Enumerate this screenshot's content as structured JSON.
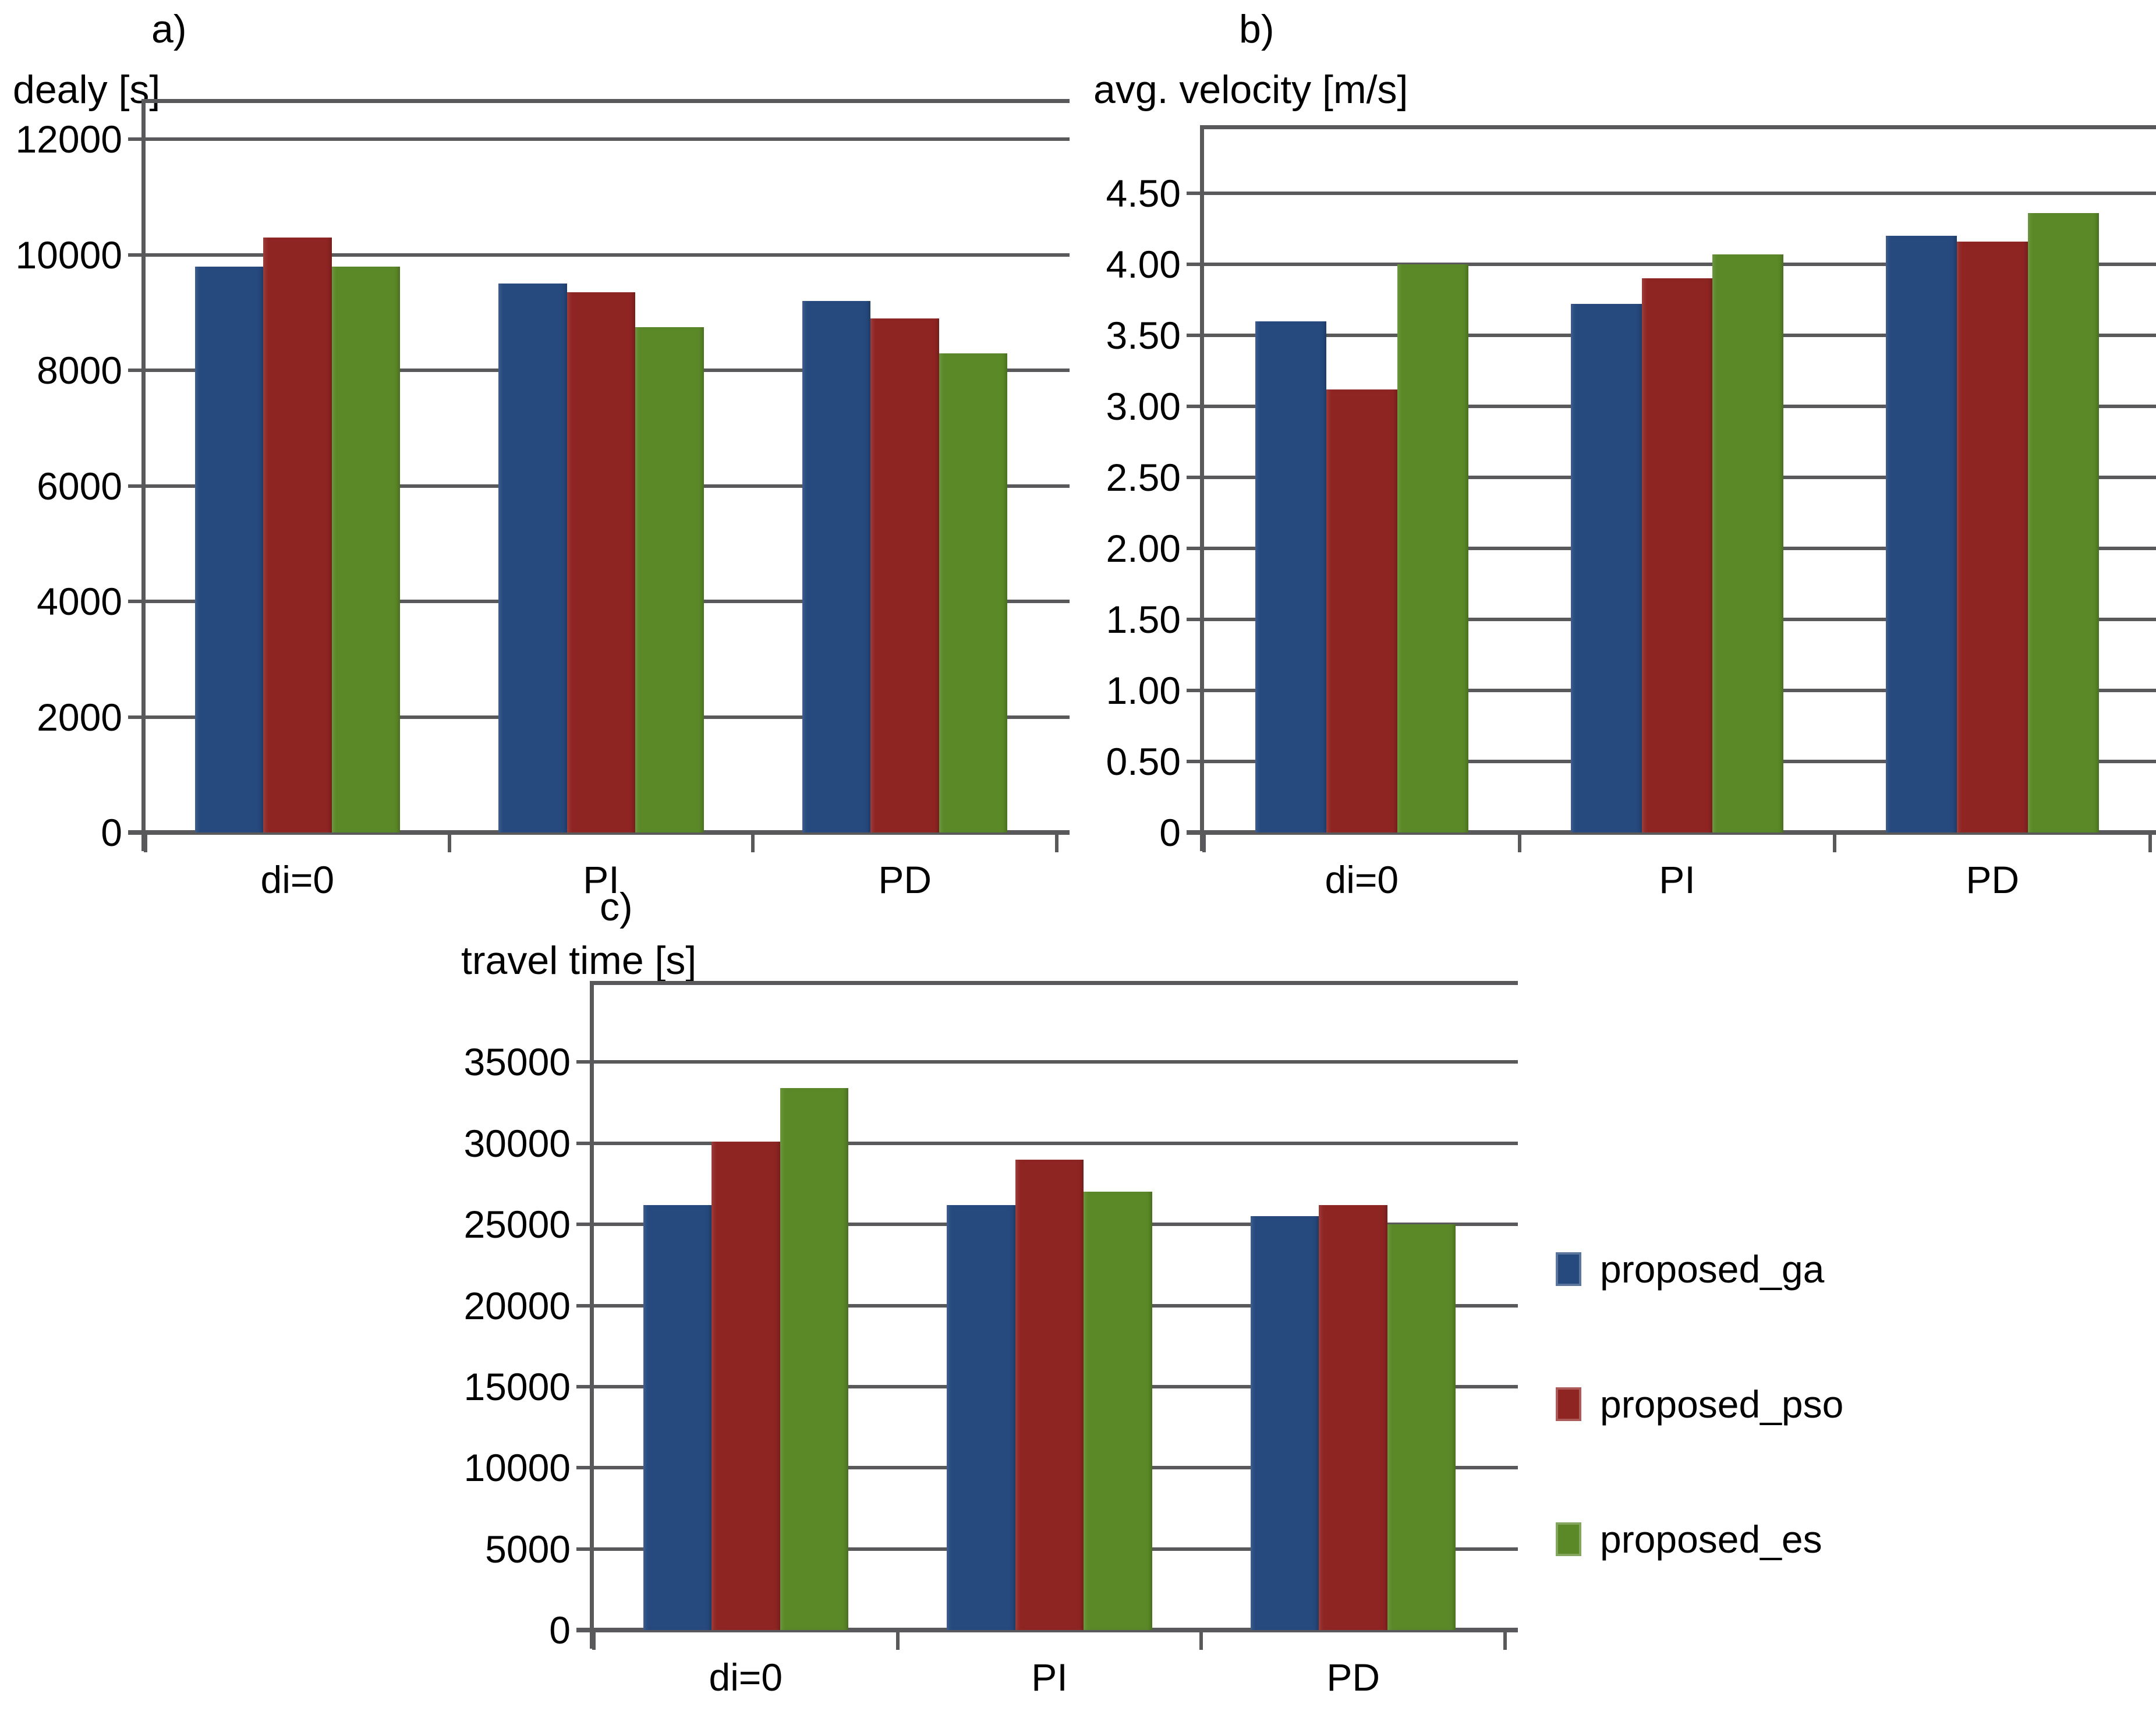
{
  "figure": {
    "background": "#ffffff",
    "gridline_color": "#59595b",
    "text_color": "#000000"
  },
  "legend": {
    "items": [
      {
        "label": "proposed_ga",
        "color": "#26497E"
      },
      {
        "label": "proposed_pso",
        "color": "#8F2523"
      },
      {
        "label": "proposed_es",
        "color": "#5B8928"
      }
    ]
  },
  "chart_data": [
    {
      "id": "a",
      "type": "bar",
      "panel_label": "a)",
      "title": "dealy [s]",
      "categories": [
        "di=0",
        "PI",
        "PD"
      ],
      "series": [
        {
          "name": "proposed_ga",
          "color": "#26497E",
          "values": [
            9800,
            9500,
            9200
          ]
        },
        {
          "name": "proposed_pso",
          "color": "#8F2523",
          "values": [
            10300,
            9350,
            8900
          ]
        },
        {
          "name": "proposed_es",
          "color": "#5B8928",
          "values": [
            9800,
            8750,
            8300
          ]
        }
      ],
      "ylabel": "dealy [s]",
      "xlabel": "",
      "ylim": [
        0,
        12700
      ],
      "yticks": [
        0,
        2000,
        4000,
        6000,
        8000,
        10000,
        12000
      ],
      "ytick_labels": [
        "0",
        "2000",
        "4000",
        "6000",
        "8000",
        "10000",
        "12000"
      ],
      "grid": true,
      "legend_position": "shared-bottom-right"
    },
    {
      "id": "b",
      "type": "bar",
      "panel_label": "b)",
      "title": "avg. velocity [m/s]",
      "categories": [
        "di=0",
        "PI",
        "PD"
      ],
      "series": [
        {
          "name": "proposed_ga",
          "color": "#26497E",
          "values": [
            3.6,
            3.72,
            4.2
          ]
        },
        {
          "name": "proposed_pso",
          "color": "#8F2523",
          "values": [
            3.12,
            3.9,
            4.16
          ]
        },
        {
          "name": "proposed_es",
          "color": "#5B8928",
          "values": [
            4.0,
            4.07,
            4.36
          ]
        }
      ],
      "ylabel": "avg. velocity [m/s]",
      "xlabel": "",
      "ylim": [
        0,
        4.98
      ],
      "yticks": [
        0,
        0.5,
        1.0,
        1.5,
        2.0,
        2.5,
        3.0,
        3.5,
        4.0,
        4.5
      ],
      "ytick_labels": [
        "0",
        "0.50",
        "1.00",
        "1.50",
        "2.00",
        "2.50",
        "3.00",
        "3.50",
        "4.00",
        "4.50"
      ],
      "grid": true,
      "legend_position": "shared-bottom-right"
    },
    {
      "id": "c",
      "type": "bar",
      "panel_label": "c)",
      "title": "travel time [s]",
      "categories": [
        "di=0",
        "PI",
        "PD"
      ],
      "series": [
        {
          "name": "proposed_ga",
          "color": "#26497E",
          "values": [
            26200,
            26200,
            25500
          ]
        },
        {
          "name": "proposed_pso",
          "color": "#8F2523",
          "values": [
            30100,
            29000,
            26200
          ]
        },
        {
          "name": "proposed_es",
          "color": "#5B8928",
          "values": [
            33400,
            27000,
            25000
          ]
        }
      ],
      "ylabel": "travel time [s]",
      "xlabel": "",
      "ylim": [
        0,
        40000
      ],
      "yticks": [
        0,
        5000,
        10000,
        15000,
        20000,
        25000,
        30000,
        35000
      ],
      "ytick_labels": [
        "0",
        "5000",
        "10000",
        "15000",
        "20000",
        "25000",
        "30000",
        "35000"
      ],
      "grid": true,
      "legend_position": "shared-bottom-right"
    }
  ]
}
